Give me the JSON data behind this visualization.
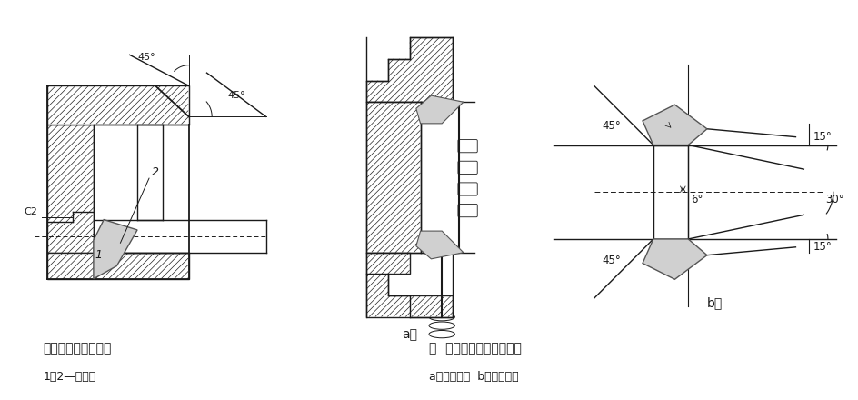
{
  "background_color": "#ffffff",
  "line_color": "#1a1a1a",
  "hatch_gray": "#aaaaaa",
  "label_left_title": "内孔倒角的多刃车刀",
  "label_left_sub": "1、2—切削刃",
  "label_right_title": "图  多刃车刀车削齿轮轮环",
  "label_right_sub": "a）车削情况  b）车刀角度",
  "label_a": "a）",
  "label_b": "b）"
}
